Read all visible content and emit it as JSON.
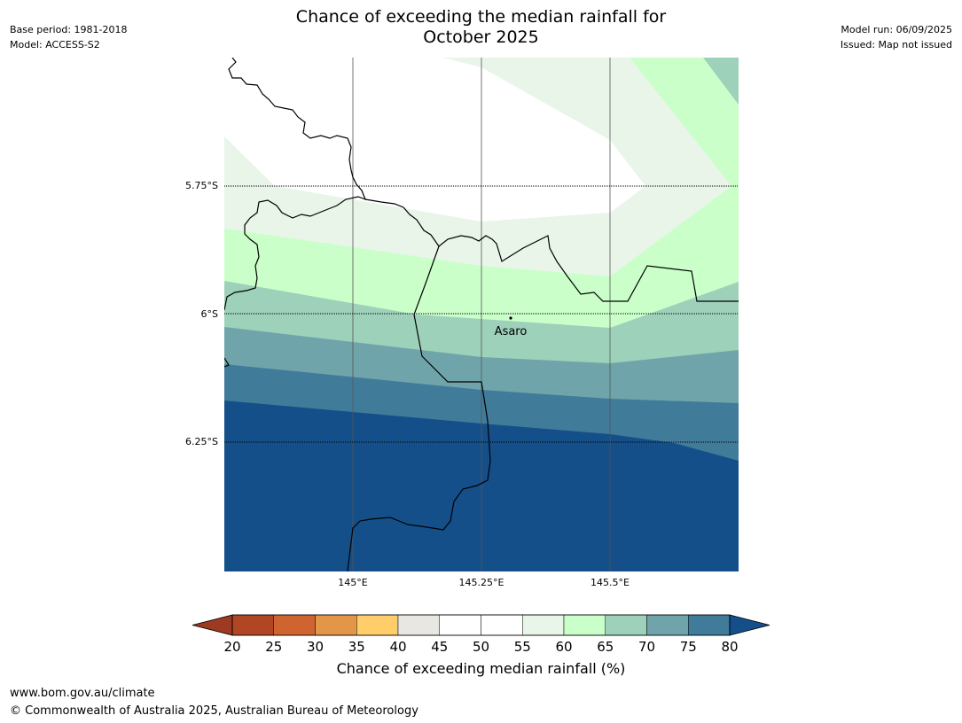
{
  "title": {
    "line1": "Chance of exceeding the median rainfall for",
    "line2": "October 2025"
  },
  "meta_left": {
    "base_period": "Base period: 1981-2018",
    "model": "Model: ACCESS-S2"
  },
  "meta_right": {
    "model_run": "Model run: 06/09/2025",
    "issued": "Issued: Map not issued"
  },
  "map": {
    "lat_labels": [
      "5.75°S",
      "6°S",
      "6.25°S"
    ],
    "lon_labels": [
      "145°E",
      "145.25°E",
      "145.5°E"
    ],
    "place": {
      "name": "Asaro"
    }
  },
  "colorbar": {
    "ticks": [
      "20",
      "25",
      "30",
      "35",
      "40",
      "45",
      "50",
      "55",
      "60",
      "65",
      "70",
      "75",
      "80"
    ],
    "colors": [
      "#b04624",
      "#cf6431",
      "#e39648",
      "#ffcd69",
      "#e8e7e2",
      "#ffffff",
      "#ffffff",
      "#e9f5e9",
      "#caffca",
      "#9ed1ba",
      "#6fa5aa",
      "#417b9a"
    ],
    "under_color": "#9e3a22",
    "over_color": "#154f89",
    "title": "Chance of exceeding median rainfall (%)"
  },
  "contour_colors": {
    "c55_60": "#e9f5e9",
    "c60_65": "#caffca",
    "c65_70": "#9ed1ba",
    "c70_75": "#6fa5aa",
    "c75_80": "#417b9a",
    "c80_plus": "#154f89"
  },
  "footer": {
    "url": "www.bom.gov.au/climate",
    "copyright": "© Commonwealth of Australia 2025, Australian Bureau of Meteorology"
  }
}
